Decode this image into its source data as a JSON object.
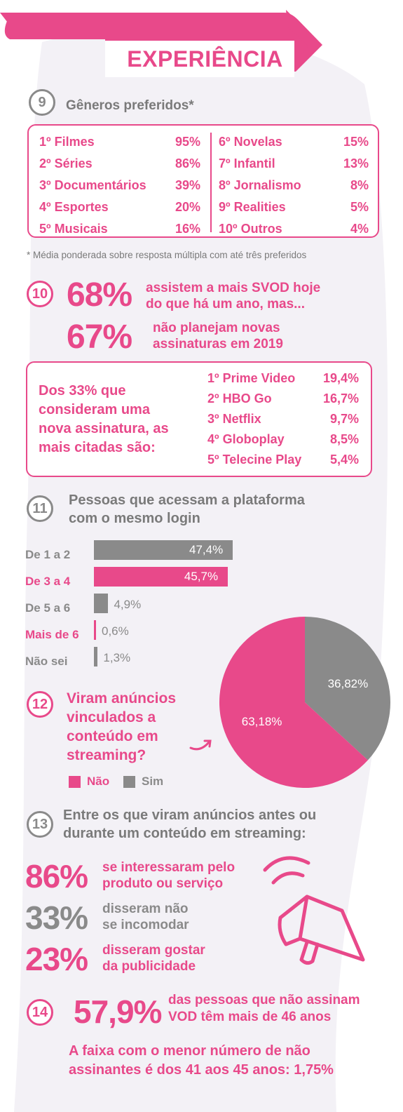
{
  "header": {
    "title": "EXPERIÊNCIA"
  },
  "colors": {
    "pink": "#e8498a",
    "grey": "#8a8a8a",
    "background_blob": "#f3f1f6"
  },
  "sec9": {
    "number": "9",
    "title": "Gêneros preferidos*",
    "left": [
      {
        "label": "1º Filmes",
        "value": "95%"
      },
      {
        "label": "2º Séries",
        "value": "86%"
      },
      {
        "label": "3º Documentários",
        "value": "39%"
      },
      {
        "label": "4º Esportes",
        "value": "20%"
      },
      {
        "label": "5º Musicais",
        "value": "16%"
      }
    ],
    "right": [
      {
        "label": "6º Novelas",
        "value": "15%"
      },
      {
        "label": "7º Infantil",
        "value": "13%"
      },
      {
        "label": "8º Jornalismo",
        "value": "8%"
      },
      {
        "label": "9º Realities",
        "value": "5%"
      },
      {
        "label": "10º Outros",
        "value": "4%"
      }
    ],
    "footnote": "* Média ponderada sobre resposta múltipla com até três preferidos"
  },
  "sec10": {
    "number": "10",
    "pct1": "68%",
    "text1_l1": "assistem a mais SVOD hoje",
    "text1_l2": "do que há um ano, mas...",
    "pct2": "67%",
    "text2_l1": "não planejam novas",
    "text2_l2": "assinaturas em 2019",
    "box_l1": "Dos 33% que",
    "box_l2": "consideram uma",
    "box_l3": "nova assinatura, as",
    "box_l4": "mais citadas são:",
    "ranking": [
      {
        "label": "1º Prime Video",
        "value": "19,4%"
      },
      {
        "label": "2º HBO Go",
        "value": "16,7%"
      },
      {
        "label": "3º Netflix",
        "value": "9,7%"
      },
      {
        "label": "4º Globoplay",
        "value": "8,5%"
      },
      {
        "label": "5º Telecine Play",
        "value": "5,4%"
      }
    ]
  },
  "sec11": {
    "number": "11",
    "title_l1": "Pessoas que acessam a plataforma",
    "title_l2": "com o mesmo login"
  },
  "sec12": {
    "number": "12",
    "q_l1": "Viram anúncios",
    "q_l2": "vinculados a",
    "q_l3": "conteúdo em",
    "q_l4": "streaming?",
    "legend_no": "Não",
    "legend_yes": "Sim"
  },
  "sec13": {
    "number": "13",
    "title_l1": "Entre os que viram anúncios antes ou",
    "title_l2": "durante um conteúdo em streaming:",
    "items": [
      {
        "pct": "86%",
        "l1": "se interessaram pelo",
        "l2": "produto ou serviço"
      },
      {
        "pct": "33%",
        "l1": "disseram não",
        "l2": "se incomodar"
      },
      {
        "pct": "23%",
        "l1": "disseram gostar",
        "l2": "da publicidade"
      }
    ]
  },
  "sec14": {
    "number": "14",
    "pct": "57,9%",
    "l1": "das pessoas que não assinam",
    "l2": "VOD têm mais de 46 anos",
    "foot_l1": "A faixa com o menor número de não",
    "foot_l2": "assinantes é dos 41 aos 45 anos: 1,75%"
  },
  "chart_data": [
    {
      "type": "bar",
      "categories": [
        "De 1 a 2",
        "De 3 a 4",
        "De 5 a 6",
        "Mais de 6",
        "Não sei"
      ],
      "values": [
        47.4,
        45.7,
        4.9,
        0.6,
        1.3
      ],
      "value_labels": [
        "47,4%",
        "45,7%",
        "4,9%",
        "0,6%",
        "1,3%"
      ],
      "highlight": [
        false,
        true,
        false,
        true,
        false
      ],
      "orientation": "horizontal"
    },
    {
      "type": "pie",
      "labels": [
        "Não",
        "Sim"
      ],
      "values": [
        63.18,
        36.82
      ],
      "value_labels": [
        "63,18%",
        "36,82%"
      ],
      "colors": [
        "#e8498a",
        "#8a8a8a"
      ],
      "legend": "bottom-left"
    }
  ]
}
